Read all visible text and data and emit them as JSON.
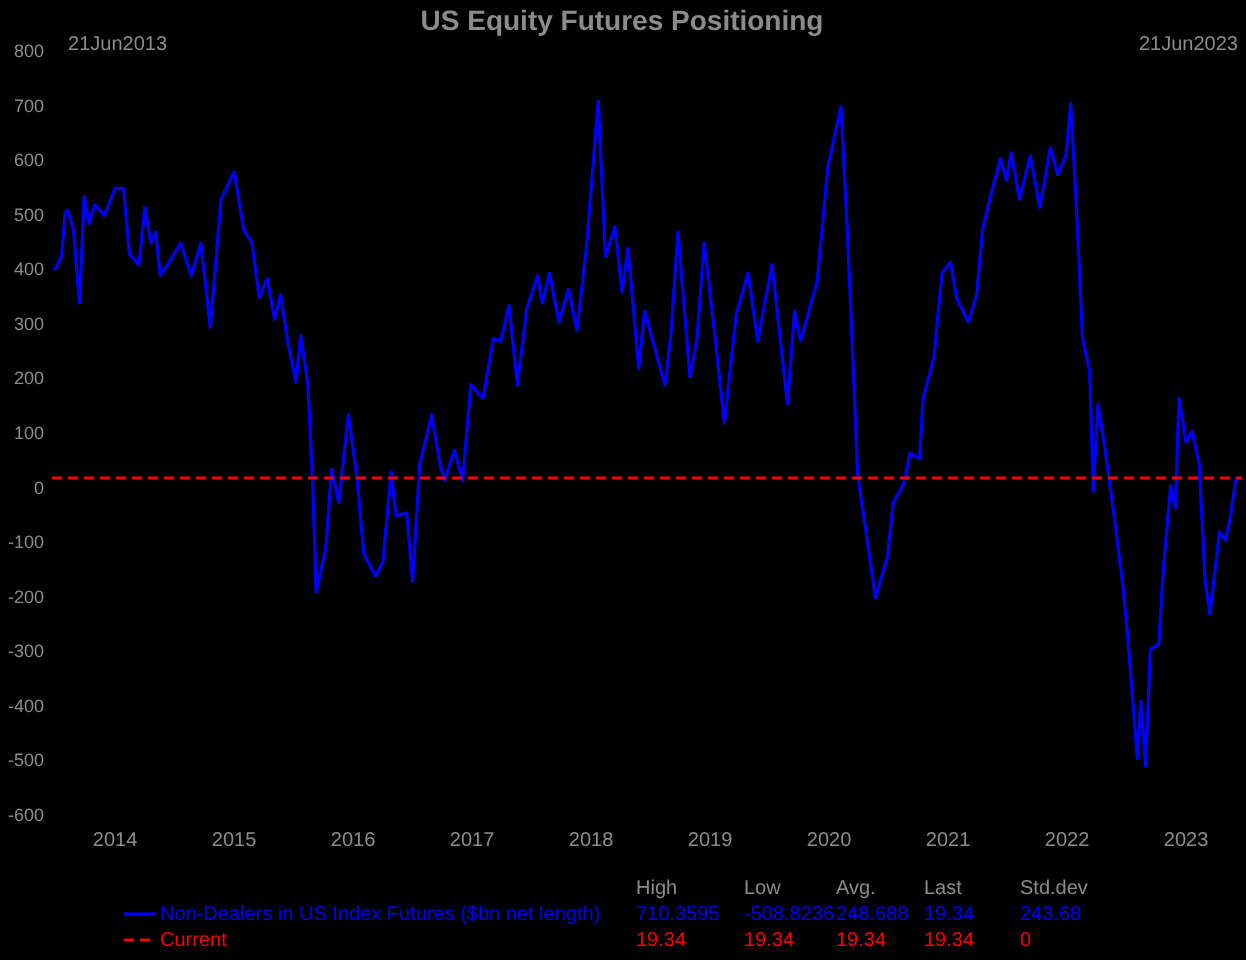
{
  "chart_data": {
    "type": "line",
    "title": "US Equity Futures Positioning",
    "xlim": [
      2013.47,
      2023.47
    ],
    "xticks": [
      2014,
      2015,
      2016,
      2017,
      2018,
      2019,
      2020,
      2021,
      2022,
      2023
    ],
    "ylim": [
      -600,
      800
    ],
    "yticks": [
      -600,
      -500,
      -400,
      -300,
      -200,
      -100,
      0,
      100,
      200,
      300,
      400,
      500,
      600,
      700,
      800
    ],
    "grid": false,
    "legend": "bottom",
    "marker": "none",
    "line_style": "solid",
    "series": [
      {
        "name": "Non-Dealers in US Index Futures ($bn net length)",
        "color": "#0000ff",
        "x": [
          2013.49,
          2013.55,
          2013.58,
          2013.6,
          2013.65,
          2013.7,
          2013.74,
          2013.78,
          2013.83,
          2013.91,
          2014.0,
          2014.07,
          2014.12,
          2014.2,
          2014.25,
          2014.3,
          2014.34,
          2014.38,
          2014.47,
          2014.55,
          2014.64,
          2014.72,
          2014.8,
          2014.89,
          2015.0,
          2015.08,
          2015.15,
          2015.21,
          2015.28,
          2015.34,
          2015.39,
          2015.45,
          2015.52,
          2015.56,
          2015.62,
          2015.66,
          2015.69,
          2015.77,
          2015.82,
          2015.88,
          2015.96,
          2016.03,
          2016.09,
          2016.19,
          2016.25,
          2016.32,
          2016.36,
          2016.45,
          2016.5,
          2016.56,
          2016.66,
          2016.73,
          2016.77,
          2016.85,
          2016.92,
          2016.99,
          2017.09,
          2017.18,
          2017.24,
          2017.31,
          2017.38,
          2017.46,
          2017.55,
          2017.59,
          2017.65,
          2017.73,
          2017.81,
          2017.88,
          2017.96,
          2018.06,
          2018.12,
          2018.2,
          2018.26,
          2018.31,
          2018.4,
          2018.45,
          2018.62,
          2018.67,
          2018.73,
          2018.83,
          2018.89,
          2018.95,
          2019.04,
          2019.12,
          2019.22,
          2019.32,
          2019.4,
          2019.52,
          2019.65,
          2019.71,
          2019.76,
          2019.9,
          2019.99,
          2020.1,
          2020.15,
          2020.18,
          2020.24,
          2020.32,
          2020.39,
          2020.49,
          2020.54,
          2020.63,
          2020.68,
          2020.76,
          2020.79,
          2020.88,
          2020.95,
          2021.02,
          2021.07,
          2021.17,
          2021.24,
          2021.29,
          2021.35,
          2021.44,
          2021.49,
          2021.53,
          2021.6,
          2021.69,
          2021.77,
          2021.86,
          2021.92,
          2021.99,
          2022.03,
          2022.07,
          2022.13,
          2022.19,
          2022.22,
          2022.26,
          2022.31,
          2022.38,
          2022.47,
          2022.52,
          2022.59,
          2022.62,
          2022.66,
          2022.7,
          2022.77,
          2022.81,
          2022.87,
          2022.91,
          2022.94,
          2023.0,
          2023.05,
          2023.11,
          2023.16,
          2023.2,
          2023.28,
          2023.33,
          2023.37,
          2023.42
        ],
        "values": [
          400,
          425,
          505,
          510,
          475,
          340,
          535,
          485,
          520,
          500,
          550,
          550,
          430,
          410,
          515,
          450,
          470,
          390,
          420,
          450,
          390,
          450,
          295,
          530,
          580,
          475,
          450,
          350,
          385,
          310,
          355,
          270,
          195,
          280,
          190,
          10,
          -190,
          -110,
          35,
          -25,
          135,
          25,
          -120,
          -160,
          -135,
          30,
          -50,
          -45,
          -170,
          45,
          135,
          45,
          15,
          70,
          15,
          190,
          165,
          275,
          270,
          335,
          190,
          330,
          390,
          340,
          395,
          305,
          365,
          290,
          440,
          710,
          425,
          480,
          360,
          440,
          220,
          325,
          190,
          280,
          470,
          205,
          275,
          450,
          280,
          120,
          320,
          395,
          270,
          410,
          155,
          325,
          270,
          380,
          590,
          700,
          485,
          340,
          25,
          -95,
          -200,
          -125,
          -25,
          10,
          65,
          55,
          165,
          240,
          395,
          415,
          350,
          305,
          355,
          475,
          530,
          605,
          565,
          615,
          530,
          610,
          515,
          625,
          575,
          610,
          705,
          550,
          275,
          215,
          -5,
          155,
          85,
          -25,
          -180,
          -300,
          -495,
          -390,
          -509,
          -295,
          -285,
          -145,
          5,
          -35,
          165,
          85,
          105,
          45,
          -170,
          -230,
          -80,
          -95,
          -55,
          20
        ]
      }
    ],
    "ref_lines": [
      {
        "axis": "y",
        "value": 19.34,
        "label": "Current",
        "color": "#ff0000",
        "line_style": "dashed"
      }
    ],
    "annotations": [
      "21Jun2013",
      "21Jun2023",
      "High",
      "Low",
      "Avg.",
      "Last",
      "Std.dev",
      "710.3595",
      "-508.8236",
      "248.688",
      "19.34",
      "243.68",
      "19.34",
      "19.34",
      "19.34",
      "19.34",
      "0"
    ]
  }
}
